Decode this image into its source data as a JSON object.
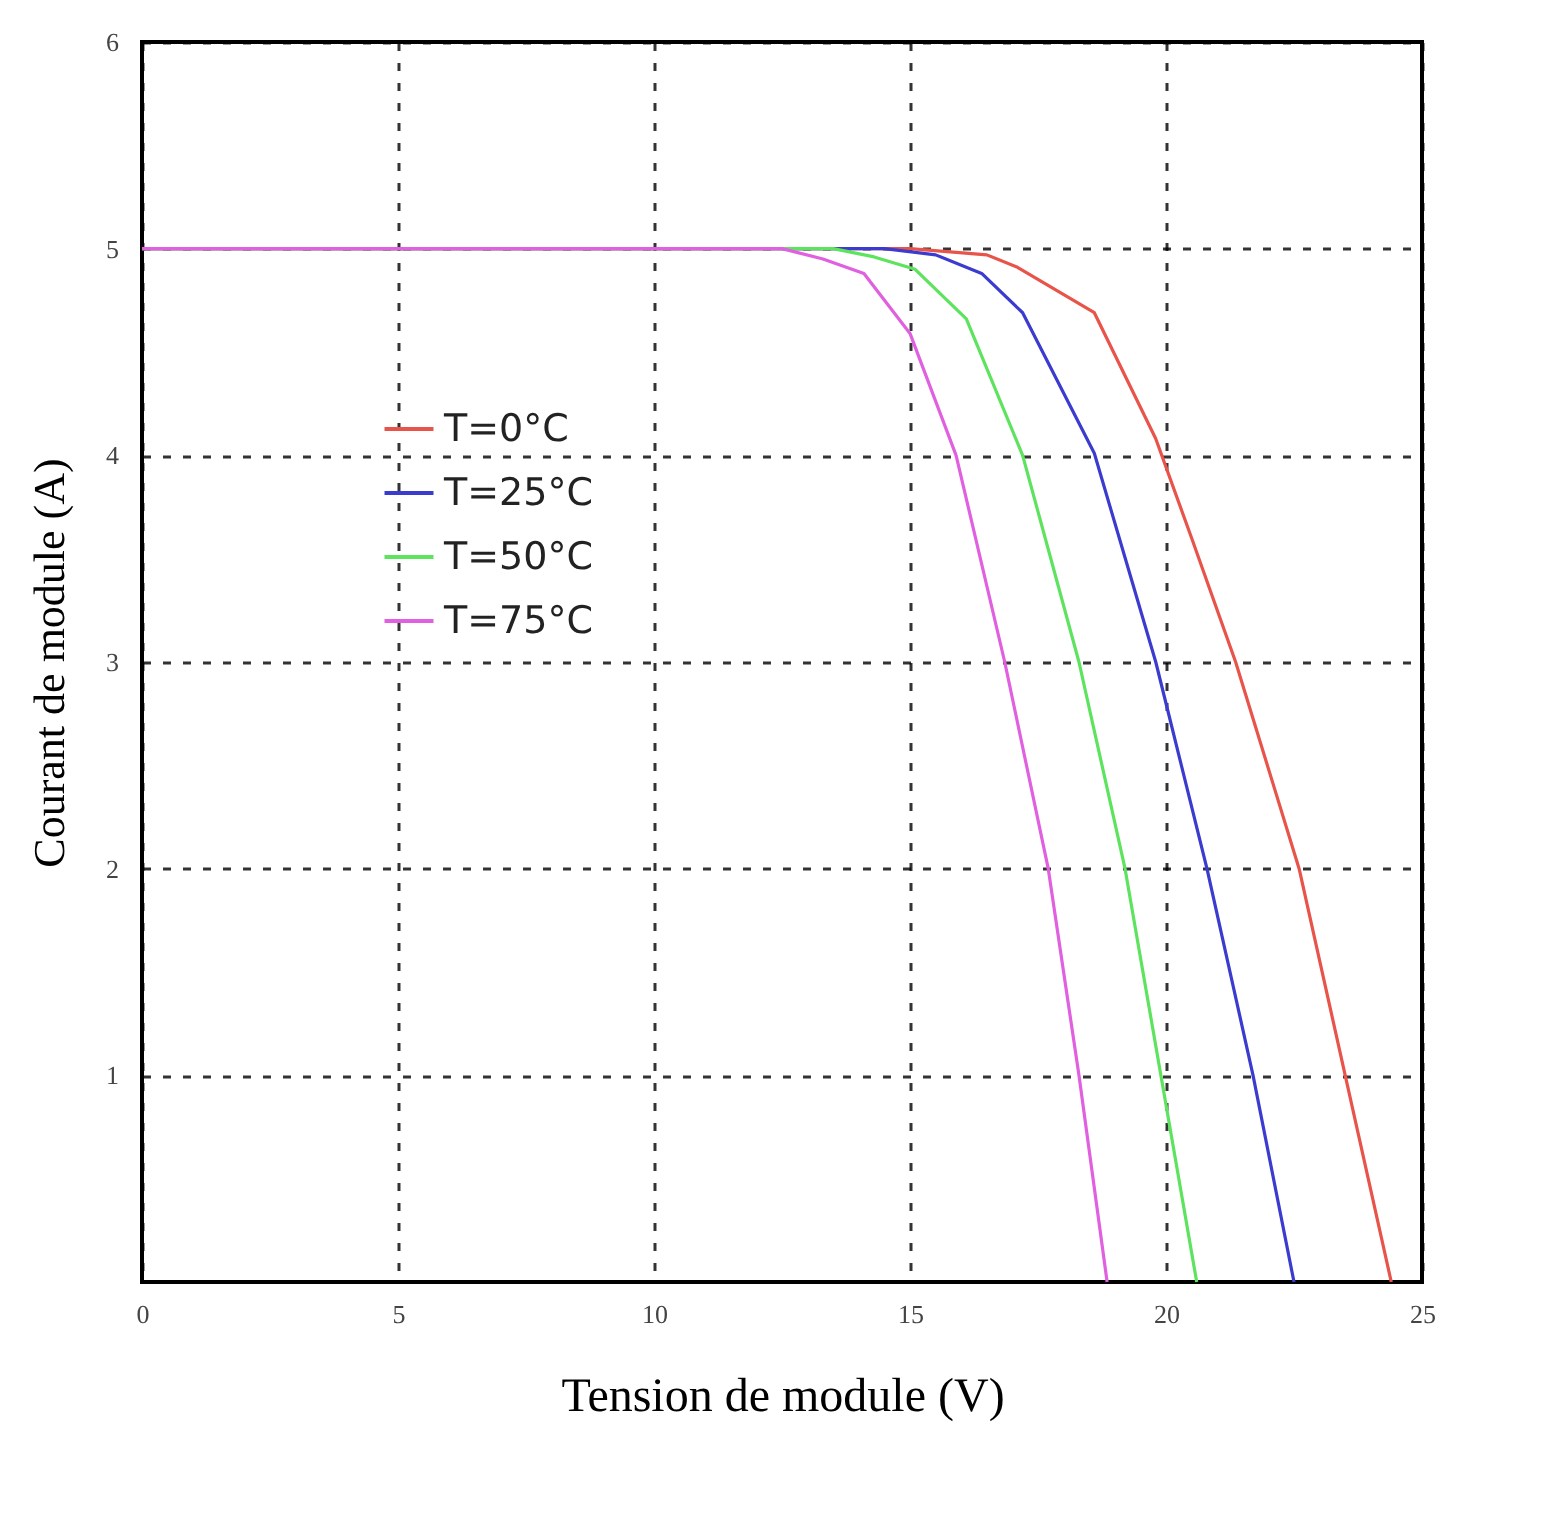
{
  "chart_data": {
    "type": "line",
    "xlabel": "Tension de module (V)",
    "ylabel": "Courant de module (A)",
    "xlim": [
      0,
      25
    ],
    "ylim": [
      0,
      6
    ],
    "xticks": [
      0,
      5,
      10,
      15,
      20,
      25
    ],
    "yticks": [
      1,
      2,
      3,
      4,
      5,
      6
    ],
    "grid": true,
    "legend": "top left",
    "marker": "none",
    "line_style": "solid",
    "series": [
      {
        "name": "T=0°C",
        "color": "#e8534a",
        "x": [
          0,
          15,
          16.5,
          17.1,
          18.6,
          19.8,
          20.5,
          21.36,
          22.6,
          23.5,
          24.4
        ],
        "values": [
          5,
          5,
          4.97,
          4.91,
          4.69,
          4.08,
          3.6,
          3,
          2,
          1,
          0
        ]
      },
      {
        "name": "T=25°C",
        "color": "#3b3bd0",
        "x": [
          0,
          14.5,
          15.5,
          16.4,
          17.2,
          18.6,
          19.8,
          20.8,
          21.7,
          22.5
        ],
        "values": [
          5,
          5,
          4.97,
          4.88,
          4.69,
          4.01,
          3,
          2,
          1,
          0
        ]
      },
      {
        "name": "T=50°C",
        "color": "#5ee35e",
        "x": [
          0,
          13.5,
          14.3,
          15.1,
          16.1,
          17.2,
          18.3,
          19.2,
          19.9,
          20.6
        ],
        "values": [
          5,
          5,
          4.96,
          4.9,
          4.66,
          4,
          3,
          2,
          1,
          0
        ]
      },
      {
        "name": "T=75°C",
        "color": "#e060e0",
        "x": [
          0,
          12.5,
          13.3,
          14.1,
          15,
          15.9,
          16.85,
          17.7,
          18.3,
          18.85
        ],
        "values": [
          5,
          5,
          4.95,
          4.88,
          4.59,
          4,
          3,
          2,
          1,
          0
        ]
      }
    ]
  }
}
